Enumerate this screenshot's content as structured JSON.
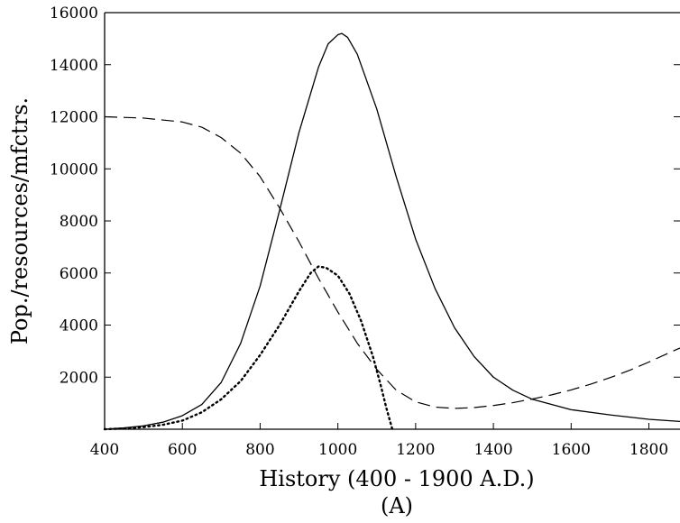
{
  "chart_data": {
    "type": "line",
    "title": "",
    "xlabel": "History (400 - 1900 A.D.)",
    "ylabel": "Pop./resources/mfctrs.",
    "caption": "(A)",
    "xlim": [
      400,
      1880
    ],
    "ylim": [
      0,
      16000
    ],
    "xticks": [
      400,
      600,
      800,
      1000,
      1200,
      1400,
      1600,
      1800
    ],
    "yticks": [
      2000,
      4000,
      6000,
      8000,
      10000,
      12000,
      14000,
      16000
    ],
    "grid": false,
    "legend": "none",
    "series": [
      {
        "style": "solid",
        "x": [
          400,
          450,
          500,
          550,
          600,
          650,
          700,
          750,
          800,
          850,
          900,
          950,
          975,
          1000,
          1010,
          1025,
          1050,
          1100,
          1150,
          1200,
          1250,
          1300,
          1350,
          1400,
          1450,
          1500,
          1600,
          1700,
          1800,
          1880
        ],
        "y": [
          0,
          50,
          130,
          270,
          520,
          950,
          1800,
          3300,
          5500,
          8400,
          11400,
          13900,
          14800,
          15150,
          15200,
          15050,
          14400,
          12300,
          9700,
          7300,
          5400,
          3900,
          2800,
          2000,
          1500,
          1150,
          750,
          550,
          380,
          300
        ]
      },
      {
        "style": "dashed",
        "x": [
          400,
          500,
          600,
          650,
          700,
          750,
          800,
          850,
          900,
          950,
          1000,
          1050,
          1100,
          1150,
          1200,
          1250,
          1300,
          1350,
          1400,
          1450,
          1500,
          1550,
          1600,
          1650,
          1700,
          1750,
          1800,
          1850,
          1880
        ],
        "y": [
          12000,
          11950,
          11800,
          11600,
          11200,
          10600,
          9700,
          8500,
          7200,
          5800,
          4500,
          3300,
          2300,
          1500,
          1050,
          850,
          800,
          830,
          910,
          1020,
          1160,
          1320,
          1510,
          1730,
          1980,
          2260,
          2580,
          2920,
          3120
        ]
      },
      {
        "style": "dotted",
        "x": [
          400,
          450,
          500,
          550,
          600,
          650,
          700,
          750,
          800,
          850,
          900,
          930,
          950,
          970,
          1000,
          1030,
          1060,
          1090,
          1110,
          1125,
          1140
        ],
        "y": [
          0,
          30,
          80,
          170,
          330,
          650,
          1150,
          1850,
          2850,
          4000,
          5300,
          6000,
          6250,
          6200,
          5900,
          5200,
          4150,
          2800,
          1700,
          800,
          0
        ]
      }
    ]
  }
}
